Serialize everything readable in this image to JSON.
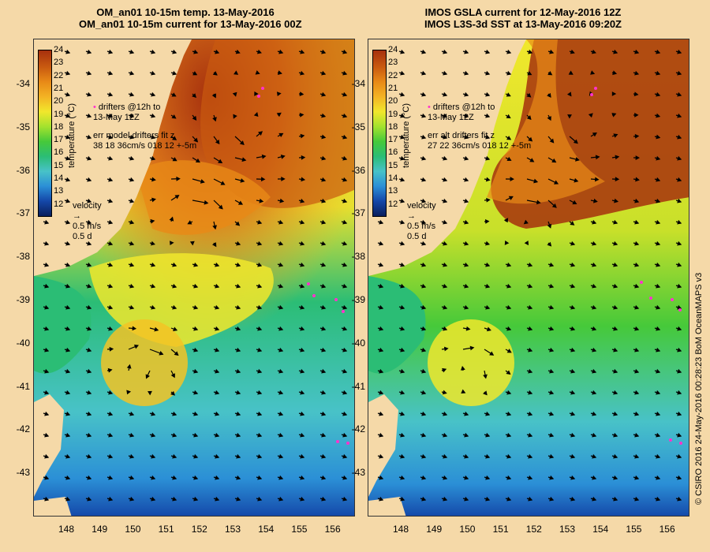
{
  "left_title": {
    "line1": "OM_an01 10-15m temp. 13-May-2016",
    "line2": "OM_an01 10-15m current for 13-May-2016 00Z"
  },
  "right_title": {
    "line1": "IMOS GSLA current for 12-May-2016 12Z",
    "line2": "IMOS L3S-3d SST at 13-May-2016 09:20Z"
  },
  "lat_labels": [
    "-34",
    "-35",
    "-36",
    "-37",
    "-38",
    "-39",
    "-40",
    "-41",
    "-42",
    "-43"
  ],
  "lon_labels": [
    "148",
    "149",
    "150",
    "151",
    "152",
    "153",
    "154",
    "155",
    "156"
  ],
  "colorbar": {
    "title": "temperature (°C)",
    "labels": [
      "24",
      "23",
      "22",
      "21",
      "20",
      "19",
      "18",
      "17",
      "16",
      "15",
      "14",
      "13",
      "12"
    ]
  },
  "left_notes": {
    "drifters1": "drifters @12h to",
    "drifters2": "13-May 12Z",
    "err1": "err model drifters fit z",
    "err2": "38 18 36cm/s 018 12 +-5m",
    "velocity": "velocity",
    "vel_speed": "0.5 m/s",
    "vel_time": "0.5 d"
  },
  "right_notes": {
    "drifters1": "drifters @12h to",
    "drifters2": "13-May 12Z",
    "err1": "err alt drifters fit z",
    "err2": "27 22 36cm/s 018 12 +-5m",
    "velocity": "velocity",
    "vel_speed": "0.5 m/s",
    "vel_time": "0.5 d"
  },
  "credit": "© CSIRO 2016  24-May-2016 00:28:23 BoM OceanMAPS v3",
  "colors": {
    "land": "#f5d9a8",
    "drifter": "#ff33cc",
    "arrow": "#000000"
  }
}
